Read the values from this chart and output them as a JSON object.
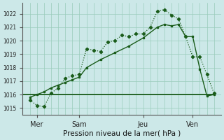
{
  "title": "",
  "xlabel": "Pression niveau de la mer( hPa )",
  "ylabel": "",
  "bg_color": "#cce8e8",
  "grid_color": "#99ccbb",
  "line_color": "#1a5c1a",
  "ylim": [
    1014.5,
    1022.8
  ],
  "xlim": [
    -1,
    27
  ],
  "xtick_positions": [
    1,
    7,
    16,
    23
  ],
  "xtick_labels": [
    "Mer",
    "Sam",
    "Jeu",
    "Ven"
  ],
  "ytick_positions": [
    1015,
    1016,
    1017,
    1018,
    1019,
    1020,
    1021,
    1022
  ],
  "ytick_labels": [
    "1015",
    "1016",
    "1017",
    "1018",
    "1019",
    "1020",
    "1021",
    "1022"
  ],
  "line1_x": [
    0,
    1,
    2,
    3,
    4,
    5,
    6,
    7,
    8,
    9,
    10,
    11,
    12,
    13,
    14,
    15,
    16,
    17,
    18,
    19,
    20,
    21,
    22,
    23,
    24,
    25,
    26
  ],
  "line1_y": [
    1015.6,
    1015.2,
    1015.1,
    1016.1,
    1016.5,
    1017.2,
    1017.4,
    1017.5,
    1019.4,
    1019.3,
    1019.2,
    1019.9,
    1020.0,
    1020.4,
    1020.3,
    1020.5,
    1020.5,
    1021.0,
    1022.2,
    1022.3,
    1021.9,
    1021.6,
    1020.3,
    1018.8,
    1018.8,
    1017.5,
    1016.1
  ],
  "line2_x": [
    0,
    1,
    2,
    3,
    4,
    5,
    6,
    7,
    8,
    10,
    12,
    14,
    16,
    18,
    19,
    20,
    21,
    22,
    23,
    24,
    25,
    26
  ],
  "line2_y": [
    1015.8,
    1016.0,
    1016.2,
    1016.5,
    1016.7,
    1016.9,
    1017.1,
    1017.3,
    1018.0,
    1018.6,
    1019.1,
    1019.6,
    1020.2,
    1021.0,
    1021.2,
    1021.1,
    1021.2,
    1020.3,
    1020.3,
    1017.9,
    1015.9,
    1016.0
  ],
  "line3_x": [
    -1,
    0,
    7,
    15,
    22,
    26
  ],
  "line3_y": [
    1016.0,
    1016.0,
    1016.0,
    1016.0,
    1016.0,
    1016.0
  ],
  "vgrid_x": [
    -1,
    0,
    1,
    2,
    3,
    4,
    5,
    6,
    7,
    8,
    9,
    10,
    11,
    12,
    13,
    14,
    15,
    16,
    17,
    18,
    19,
    20,
    21,
    22,
    23,
    24,
    25,
    26,
    27
  ]
}
